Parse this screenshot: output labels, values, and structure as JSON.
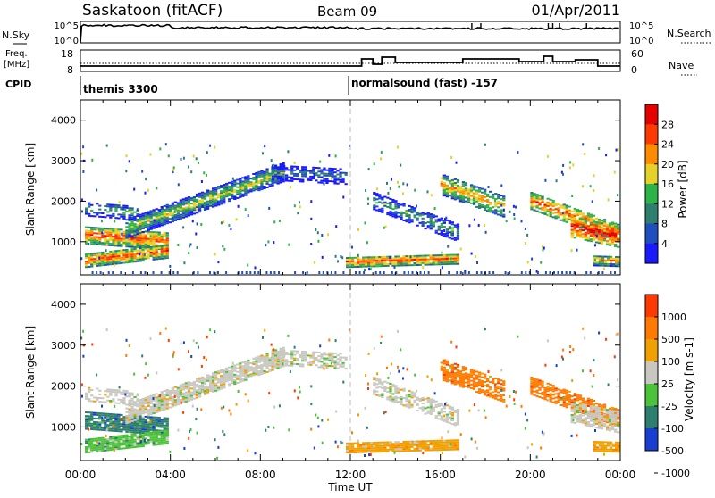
{
  "header": {
    "station": "Saskatoon (fitACF)",
    "beam": "Beam 09",
    "date": "01/Apr/2011"
  },
  "top_panel_labels": {
    "nsky": "N.Sky",
    "nsearch": "N.Search",
    "freq_line1": "Freq.",
    "freq_line2": "[MHz]",
    "nave": "Nave",
    "cpid": "CPID",
    "nsky_ticks": [
      "10^5",
      "10^0"
    ],
    "nsearch_ticks": [
      "10^5",
      "10^0"
    ],
    "freq_ticks": [
      "18",
      "8"
    ],
    "nave_ticks": [
      "60",
      "0"
    ]
  },
  "cpid": [
    {
      "label": "themis 3300",
      "start_hour": 0
    },
    {
      "label": "normalsound (fast) -157",
      "start_hour": 12
    }
  ],
  "chart_data": [
    {
      "type": "heatmap",
      "name": "power",
      "ylabel": "Slant Range [km]",
      "ylim": [
        180,
        4500
      ],
      "yticks": [
        "1000",
        "2000",
        "3000",
        "4000"
      ],
      "colorbar_label": "Power [dB]",
      "colorbar_ticks": [
        "28",
        "24",
        "20",
        "16",
        "12",
        "8",
        "4"
      ],
      "colors": [
        "#1a1aff",
        "#1f4fbf",
        "#2f7f6f",
        "#2eb24a",
        "#e6d02a",
        "#ff8c00",
        "#ff3a00",
        "#e60000"
      ]
    },
    {
      "type": "heatmap",
      "name": "velocity",
      "ylabel": "Slant Range [km]",
      "ylim": [
        180,
        4500
      ],
      "yticks": [
        "1000",
        "2000",
        "3000",
        "4000"
      ],
      "colorbar_label": "Velocity [m s-1]",
      "colorbar_ticks": [
        "1000",
        "500",
        "100",
        "25",
        "-25",
        "-100",
        "-500",
        "-1000"
      ],
      "colors": [
        "#1a3fd0",
        "#2f7f70",
        "#4cc23a",
        "#c8c8c0",
        "#f0a000",
        "#ff7a00",
        "#ff3a00"
      ]
    }
  ],
  "time_axis": {
    "xlabel": "Time UT",
    "xlim": [
      0,
      24
    ],
    "xticks": [
      "00:00",
      "04:00",
      "08:00",
      "12:00",
      "16:00",
      "20:00",
      "00:00"
    ]
  }
}
